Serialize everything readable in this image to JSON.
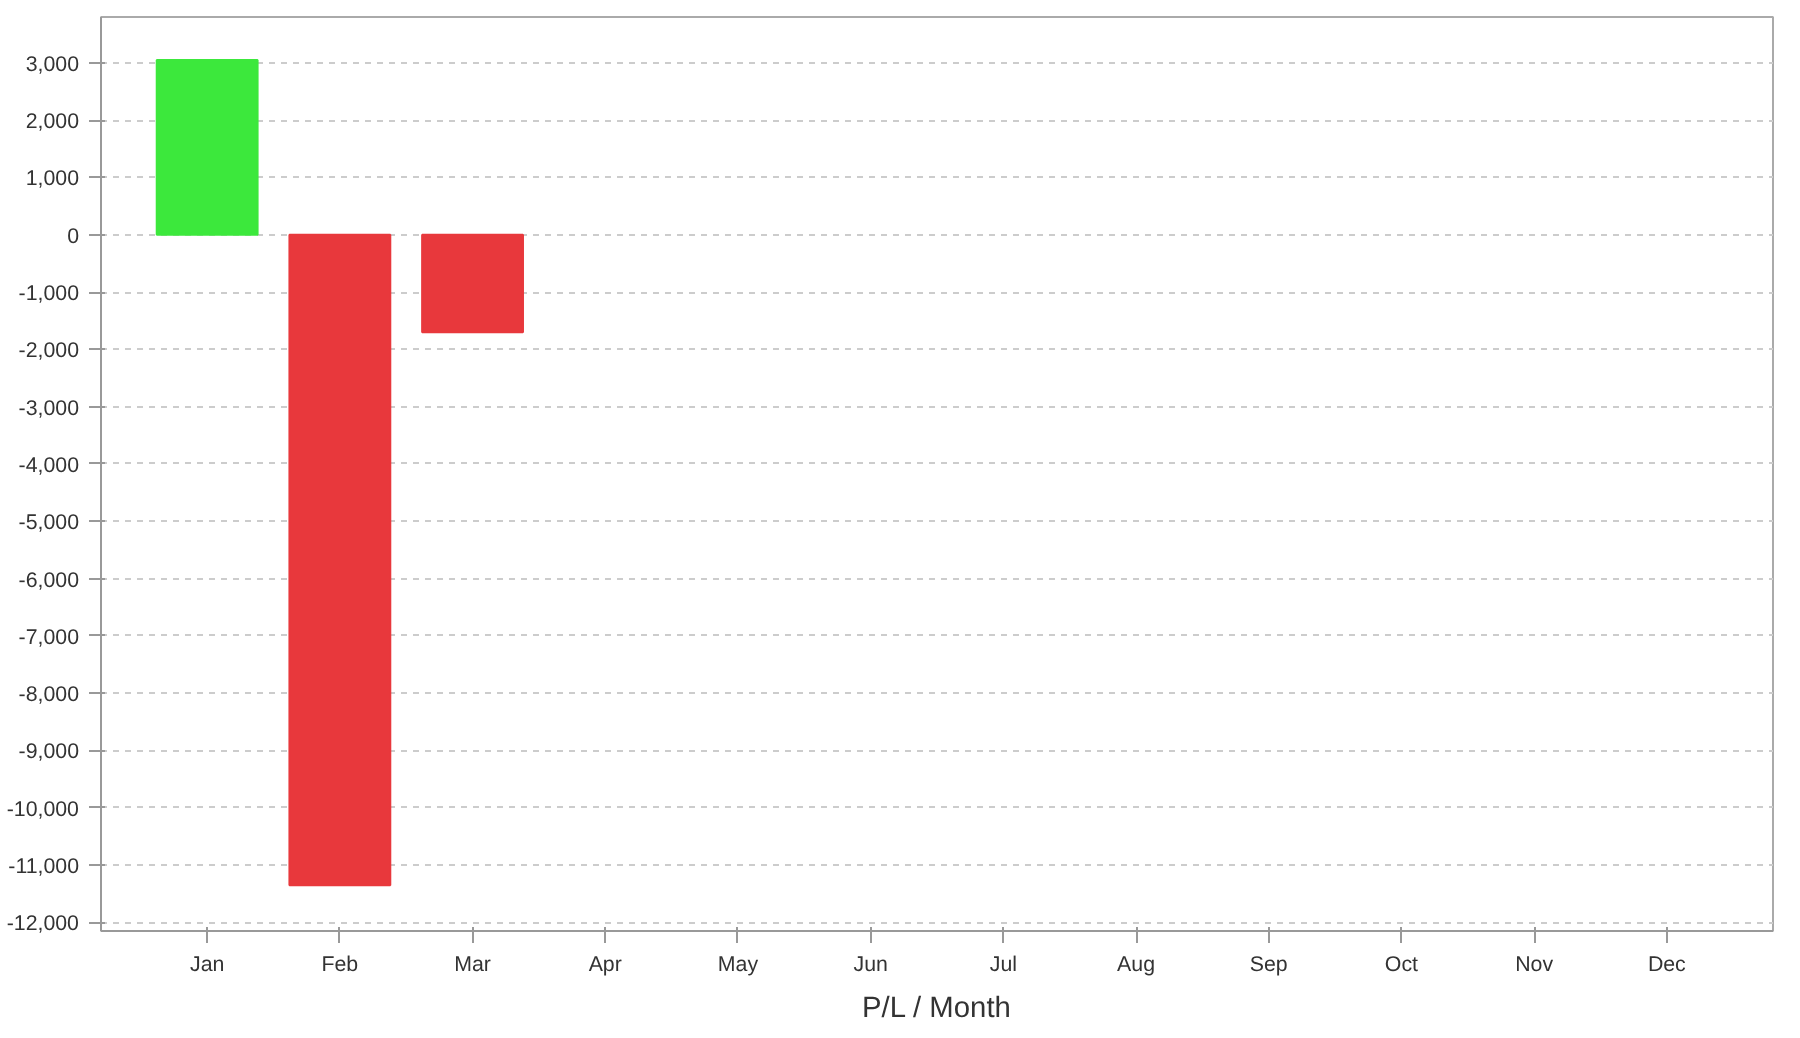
{
  "chart_data": {
    "type": "bar",
    "xlabel": "P/L / Month",
    "categories": [
      "Jan",
      "Feb",
      "Mar",
      "Apr",
      "May",
      "Jun",
      "Jul",
      "Aug",
      "Sep",
      "Oct",
      "Nov",
      "Dec"
    ],
    "values": [
      3050,
      -11350,
      -1700,
      null,
      null,
      null,
      null,
      null,
      null,
      null,
      null,
      null
    ],
    "colors": [
      "#3ce83c",
      "#e8383c",
      "#e8383c",
      "#e8383c",
      "#e8383c",
      "#e8383c",
      "#e8383c",
      "#e8383c",
      "#e8383c",
      "#e8383c",
      "#e8383c",
      "#e8383c"
    ],
    "ylim": [
      -12150,
      3800
    ],
    "yticks": [
      {
        "value": -12000,
        "label": "-12,000"
      },
      {
        "value": -11000,
        "label": "-11,000"
      },
      {
        "value": -10000,
        "label": "-10,000"
      },
      {
        "value": -9000,
        "label": "-9,000"
      },
      {
        "value": -8000,
        "label": "-8,000"
      },
      {
        "value": -7000,
        "label": "-7,000"
      },
      {
        "value": -6000,
        "label": "-6,000"
      },
      {
        "value": -5000,
        "label": "-5,000"
      },
      {
        "value": -4000,
        "label": "-4,000"
      },
      {
        "value": -3000,
        "label": "-3,000"
      },
      {
        "value": -2000,
        "label": "-2,000"
      },
      {
        "value": -1000,
        "label": "-1,000"
      },
      0,
      {
        "value": 1000,
        "label": "1,000"
      },
      {
        "value": 2000,
        "label": "2,000"
      },
      {
        "value": 3000,
        "label": "3,000"
      }
    ],
    "grid": "y"
  }
}
